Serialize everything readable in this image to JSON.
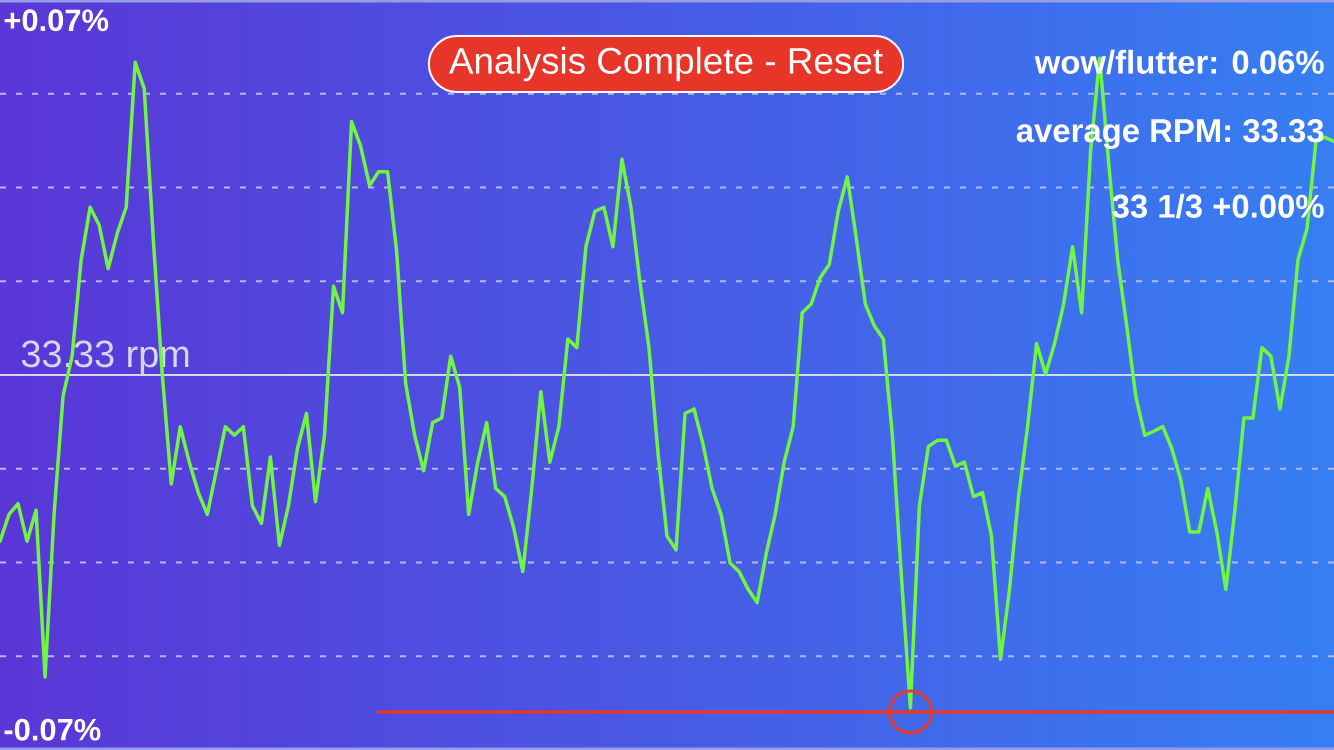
{
  "chart_data": {
    "type": "line",
    "categories": [
      null,
      null,
      null,
      null,
      null,
      null,
      null,
      null,
      null,
      null,
      null,
      null,
      null,
      null,
      null,
      null,
      null,
      null,
      null,
      null,
      null,
      null,
      null,
      null,
      null,
      null,
      null,
      null,
      null,
      null,
      null,
      null,
      null,
      null,
      null,
      null,
      null,
      null,
      null,
      null,
      null,
      null,
      null,
      null,
      null,
      null,
      null,
      null,
      null,
      null,
      null,
      null,
      null,
      null,
      null,
      null,
      null,
      null,
      null,
      null,
      null,
      null,
      null,
      null,
      null,
      null,
      null,
      null,
      null,
      null,
      null,
      null,
      null,
      null,
      null,
      null,
      null,
      null,
      null,
      null,
      null,
      null,
      null,
      null,
      null,
      null,
      null,
      null,
      null,
      null,
      null,
      null,
      null,
      null,
      null,
      null,
      null,
      null,
      null,
      null,
      null,
      null,
      null,
      null,
      null,
      null,
      null,
      null,
      null,
      null,
      null,
      null,
      null,
      null,
      null,
      null,
      null,
      null,
      null,
      null,
      null,
      null,
      null,
      null,
      null,
      null,
      null,
      null,
      null,
      null,
      null,
      null,
      null,
      null,
      null,
      null,
      null,
      null,
      null,
      null,
      null,
      null,
      null,
      null,
      null,
      null,
      null,
      null,
      null
    ],
    "series": [
      {
        "color": "#70f545",
        "values": [
          -0.0328,
          -0.0275,
          -0.0254,
          -0.0328,
          -0.0267,
          -0.0596,
          -0.0275,
          -0.0041,
          0.0037,
          0.0227,
          0.0331,
          0.0296,
          0.021,
          0.0279,
          0.0331,
          0.0617,
          0.0565,
          0.027,
          0.0002,
          -0.0215,
          -0.0102,
          -0.0172,
          -0.0232,
          -0.0275,
          -0.0189,
          -0.0102,
          -0.0119,
          -0.0102,
          -0.0258,
          -0.0293,
          -0.0162,
          -0.0336,
          -0.0258,
          -0.0145,
          -0.0076,
          -0.025,
          -0.0119,
          0.0175,
          0.0123,
          0.05,
          0.0452,
          0.0374,
          0.0401,
          0.0401,
          0.0245,
          -0.0016,
          -0.0119,
          -0.0189,
          -0.0094,
          -0.0085,
          0.0037,
          -0.0024,
          -0.0275,
          -0.0172,
          -0.0094,
          -0.0224,
          -0.024,
          -0.0302,
          -0.0388,
          -0.0224,
          -0.0033,
          -0.0172,
          -0.0102,
          0.0071,
          0.0054,
          0.0253,
          0.0323,
          0.0331,
          0.0253,
          0.0426,
          0.0331,
          0.0183,
          0.0054,
          -0.0154,
          -0.0318,
          -0.0345,
          -0.0076,
          -0.0067,
          -0.0137,
          -0.0224,
          -0.0275,
          -0.0371,
          -0.0388,
          -0.0423,
          -0.0449,
          -0.0353,
          -0.0275,
          -0.0172,
          -0.0102,
          0.0123,
          0.014,
          0.0192,
          0.0218,
          0.0323,
          0.0391,
          0.027,
          0.014,
          0.0097,
          0.0071,
          -0.0119,
          -0.0396,
          -0.0657,
          -0.0258,
          -0.0141,
          -0.0129,
          -0.0129,
          -0.018,
          -0.0172,
          -0.024,
          -0.0232,
          -0.0318,
          -0.0561,
          -0.0423,
          -0.024,
          -0.0102,
          0.0062,
          0.0002,
          0.0062,
          0.014,
          0.0253,
          0.0123,
          0.0444,
          0.0625,
          0.0418,
          0.0227,
          0.0097,
          -0.0041,
          -0.0119,
          -0.0111,
          -0.0102,
          -0.0145,
          -0.0207,
          -0.031,
          -0.031,
          -0.0224,
          -0.031,
          -0.0423,
          -0.0267,
          -0.0085,
          -0.0085,
          0.0054,
          0.0037,
          -0.0067,
          0.0037,
          0.0227,
          0.0288,
          0.0461,
          0.0469,
          0.0461
        ]
      },
      {
        "color": "#e23a2e",
        "values": [
          null,
          null,
          null,
          null,
          null,
          null,
          null,
          null,
          null,
          null,
          null,
          null,
          null,
          null,
          null,
          null,
          null,
          null,
          null,
          null,
          null,
          null,
          null,
          null,
          null,
          null,
          null,
          null,
          null,
          null,
          null,
          null,
          null,
          null,
          null,
          null,
          null,
          null,
          null,
          null,
          null,
          null,
          -0.0665,
          -0.0665,
          -0.0665,
          -0.0665,
          -0.0665,
          -0.0665,
          -0.0665,
          -0.0665,
          -0.0665,
          -0.0665,
          -0.0665,
          -0.0665,
          -0.0665,
          -0.0665,
          -0.0665,
          -0.0665,
          -0.0665,
          -0.0665,
          -0.0665,
          -0.0665,
          -0.0665,
          -0.0665,
          -0.0665,
          -0.0665,
          -0.0665,
          -0.0665,
          -0.0665,
          -0.0665,
          -0.0665,
          -0.0665,
          -0.0665,
          -0.0665,
          -0.0665,
          -0.0665,
          -0.0665,
          -0.0665,
          -0.0665,
          -0.0665,
          -0.0665,
          -0.0665,
          -0.0665,
          -0.0665,
          -0.0665,
          -0.0665,
          -0.0665,
          -0.0665,
          -0.0665,
          -0.0665,
          -0.0665,
          -0.0665,
          -0.0665,
          -0.0665,
          -0.0665,
          -0.0665,
          -0.0665,
          -0.0665,
          -0.0665,
          -0.0665,
          -0.0665,
          -0.0665,
          -0.0665,
          -0.0665,
          -0.0665,
          -0.0665,
          -0.0665,
          -0.0665,
          -0.0665,
          -0.0665,
          -0.0665,
          -0.0665,
          -0.0665,
          -0.0665,
          -0.0665,
          -0.0665,
          -0.0665,
          -0.0665,
          -0.0665,
          -0.0665,
          -0.0665,
          -0.0665,
          -0.0665,
          -0.0665,
          -0.0665,
          -0.0665,
          -0.0665,
          -0.0665,
          -0.0665,
          -0.0665,
          -0.0665,
          -0.0665,
          -0.0665,
          -0.0665,
          -0.0665,
          -0.0665,
          -0.0665,
          -0.0665,
          -0.0665,
          -0.0665,
          -0.0665,
          -0.0665,
          -0.0665,
          -0.0665,
          -0.0665,
          -0.0665,
          -0.0665,
          -0.0665,
          -0.0665
        ]
      },
      {
        "type": "scatter",
        "marker": "circle",
        "color": "#e23a2e",
        "values": [
          null,
          null,
          null,
          null,
          null,
          null,
          null,
          null,
          null,
          null,
          null,
          null,
          null,
          null,
          null,
          null,
          null,
          null,
          null,
          null,
          null,
          null,
          null,
          null,
          null,
          null,
          null,
          null,
          null,
          null,
          null,
          null,
          null,
          null,
          null,
          null,
          null,
          null,
          null,
          null,
          null,
          null,
          null,
          null,
          null,
          null,
          null,
          null,
          null,
          null,
          null,
          null,
          null,
          null,
          null,
          null,
          null,
          null,
          null,
          null,
          null,
          null,
          null,
          null,
          null,
          null,
          null,
          null,
          null,
          null,
          null,
          null,
          null,
          null,
          null,
          null,
          null,
          null,
          null,
          null,
          null,
          null,
          null,
          null,
          null,
          null,
          null,
          null,
          null,
          null,
          null,
          null,
          null,
          null,
          null,
          null,
          null,
          null,
          null,
          null,
          null,
          -0.0665,
          null,
          null,
          null,
          null,
          null,
          null,
          null,
          null,
          null,
          null,
          null,
          null,
          null,
          null,
          null,
          null,
          null,
          null,
          null,
          null,
          null,
          null,
          null,
          null,
          null,
          null,
          null,
          null,
          null,
          null,
          null,
          null,
          null,
          null,
          null,
          null,
          null,
          null,
          null,
          null,
          null,
          null,
          null,
          null,
          null,
          null,
          null
        ]
      }
    ],
    "ylim": [
      -0.074,
      0.074
    ],
    "yticks": [
      {
        "value": -0.07,
        "label": "-0.07%"
      },
      {
        "value": -0.0555,
        "label": null
      },
      {
        "value": -0.037,
        "label": null
      },
      {
        "value": -0.0185,
        "label": null
      },
      {
        "value": 0.0185,
        "label": null
      },
      {
        "value": 0.037,
        "label": null
      },
      {
        "value": 0.0555,
        "label": null
      },
      {
        "value": 0.07,
        "label": "+0.07%"
      }
    ],
    "tick_labels": "y",
    "grid": "y",
    "ref_lines": [
      {
        "axis": "y",
        "value": 0,
        "label": "33.33 rpm",
        "color": "#d6d6ee"
      }
    ],
    "annotations": [
      "Analysis Complete - Reset",
      "wow/flutter: 0.06%",
      "average RPM: 33.33",
      "33 1/3 +0.00%"
    ]
  }
}
